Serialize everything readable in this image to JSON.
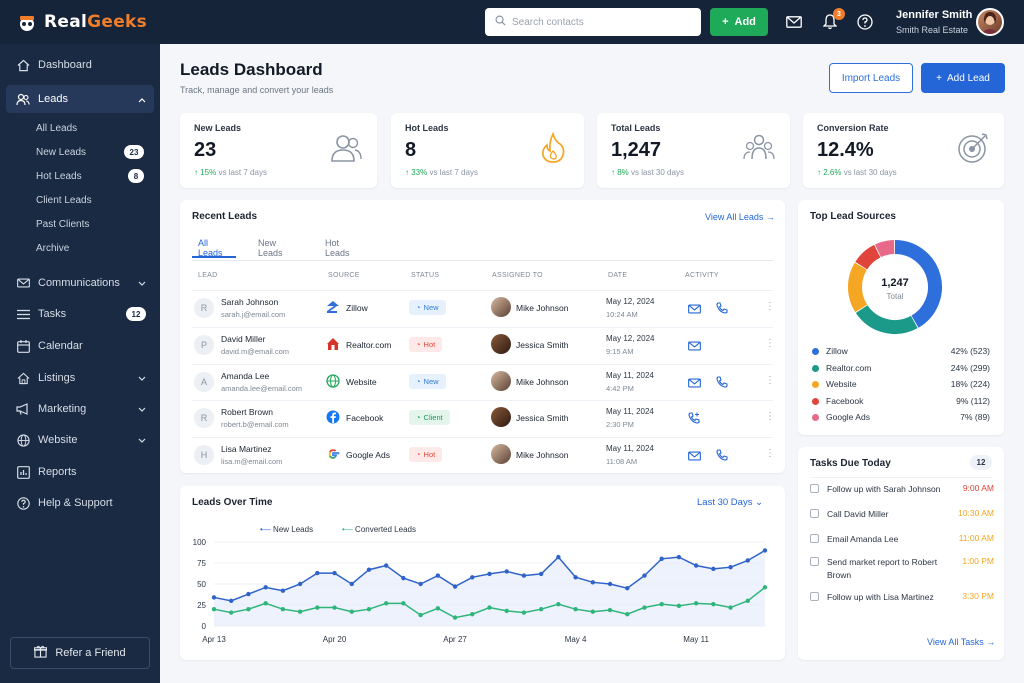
{
  "app": {
    "logo_left": "Real",
    "logo_right": "Geeks",
    "search_placeholder": "Search contacts",
    "add_label": "Add",
    "notification_count": "3",
    "user_name": "Jennifer Smith",
    "user_org": "Smith Real Estate"
  },
  "sidebar": {
    "items": [
      {
        "label": "Dashboard",
        "icon": "home-icon"
      },
      {
        "label": "Leads",
        "icon": "users-icon"
      },
      {
        "label": "Communications",
        "icon": "mail-icon"
      },
      {
        "label": "Tasks",
        "icon": "list-icon",
        "badge": "12"
      },
      {
        "label": "Calendar",
        "icon": "calendar-icon"
      },
      {
        "label": "Listings",
        "icon": "house-icon"
      },
      {
        "label": "Marketing",
        "icon": "megaphone-icon"
      },
      {
        "label": "Website",
        "icon": "globe-icon"
      },
      {
        "label": "Reports",
        "icon": "chart-icon"
      },
      {
        "label": "Help & Support",
        "icon": "help-icon"
      }
    ],
    "leads_sub": [
      {
        "label": "All Leads"
      },
      {
        "label": "New Leads",
        "badge": "23"
      },
      {
        "label": "Hot Leads",
        "badge": "8"
      },
      {
        "label": "Client Leads"
      },
      {
        "label": "Past Clients"
      },
      {
        "label": "Archive"
      }
    ],
    "refer_label": "Refer a Friend"
  },
  "header": {
    "title": "Leads Dashboard",
    "subtitle": "Track, manage and convert your leads",
    "import_label": "Import Leads",
    "add_lead_label": "Add Lead"
  },
  "stats": [
    {
      "label": "New Leads",
      "value": "23",
      "delta": "15%",
      "period": "vs last 7 days"
    },
    {
      "label": "Hot Leads",
      "value": "8",
      "delta": "33%",
      "period": "vs last 7 days"
    },
    {
      "label": "Total Leads",
      "value": "1,247",
      "delta": "8%",
      "period": "vs last 30 days"
    },
    {
      "label": "Conversion Rate",
      "value": "12.4%",
      "delta": "2.6%",
      "period": "vs last 30 days"
    }
  ],
  "recent": {
    "title": "Recent Leads",
    "view_all": "View All Leads →",
    "tabs": [
      "All Leads",
      "New Leads",
      "Hot Leads"
    ],
    "columns": [
      "LEAD",
      "SOURCE",
      "STATUS",
      "ASSIGNED TO",
      "DATE",
      "ACTIVITY"
    ],
    "rows": [
      {
        "initial": "R",
        "name": "Sarah Johnson",
        "email": "sarah.j@email.com",
        "source": "Zillow",
        "status": "New",
        "agent": "Mike Johnson",
        "date": "May 12, 2024",
        "time": "10:24 AM"
      },
      {
        "initial": "P",
        "name": "David Miller",
        "email": "david.m@email.com",
        "source": "Realtor.com",
        "status": "Hot",
        "agent": "Jessica Smith",
        "date": "May 12, 2024",
        "time": "9:15 AM"
      },
      {
        "initial": "A",
        "name": "Amanda Lee",
        "email": "amanda.lee@email.com",
        "source": "Website",
        "status": "New",
        "agent": "Mike Johnson",
        "date": "May 11, 2024",
        "time": "4:42 PM"
      },
      {
        "initial": "R",
        "name": "Robert Brown",
        "email": "robert.b@email.com",
        "source": "Facebook",
        "status": "Client",
        "agent": "Jessica Smith",
        "date": "May 11, 2024",
        "time": "2:30 PM"
      },
      {
        "initial": "H",
        "name": "Lisa Martinez",
        "email": "lisa.m@email.com",
        "source": "Google Ads",
        "status": "Hot",
        "agent": "Mike Johnson",
        "date": "May 11, 2024",
        "time": "11:08 AM"
      }
    ]
  },
  "sources": {
    "title": "Top Lead Sources",
    "total_value": "1,247",
    "total_label": "Total",
    "items": [
      {
        "name": "Zillow",
        "pct": 42,
        "value": "42% (523)",
        "color": "#2f6fdc"
      },
      {
        "name": "Realtor.com",
        "pct": 24,
        "value": "24% (299)",
        "color": "#1b9a8a"
      },
      {
        "name": "Website",
        "pct": 18,
        "value": "18% (224)",
        "color": "#f5a623"
      },
      {
        "name": "Facebook",
        "pct": 9,
        "value": "9% (112)",
        "color": "#e0443a"
      },
      {
        "name": "Google Ads",
        "pct": 7,
        "value": "7% (89)",
        "color": "#e86a8a"
      }
    ]
  },
  "tasks": {
    "title": "Tasks Due Today",
    "count": "12",
    "items": [
      {
        "text": "Follow up with Sarah Johnson",
        "time": "9:00 AM",
        "color": "#e0443a"
      },
      {
        "text": "Call David Miller",
        "time": "10:30 AM",
        "color": "#f5a623"
      },
      {
        "text": "Email Amanda Lee",
        "time": "11:00 AM",
        "color": "#f5a623"
      },
      {
        "text": "Send market report to Robert Brown",
        "time": "1:00 PM",
        "color": "#f5a623"
      },
      {
        "text": "Follow up with Lisa Martinez",
        "time": "3:30 PM",
        "color": "#f5a623"
      }
    ],
    "view_all": "View All Tasks →"
  },
  "chart_data": {
    "type": "line",
    "title": "Leads Over Time",
    "range_label": "Last 30 Days",
    "ylim": [
      0,
      100
    ],
    "yticks": [
      0,
      25,
      50,
      75,
      100
    ],
    "xtick_labels": [
      "Apr 13",
      "Apr 20",
      "Apr 27",
      "May 4",
      "May 11"
    ],
    "xtick_index": [
      0,
      7,
      14,
      21,
      28
    ],
    "series": [
      {
        "name": "New Leads",
        "color": "#2f63c9",
        "values": [
          34,
          30,
          38,
          46,
          42,
          50,
          63,
          63,
          50,
          67,
          72,
          57,
          50,
          60,
          47,
          58,
          62,
          65,
          60,
          62,
          82,
          58,
          52,
          50,
          45,
          60,
          80,
          82,
          72,
          68,
          70,
          78,
          90
        ]
      },
      {
        "name": "Converted Leads",
        "color": "#2fb57a",
        "values": [
          20,
          16,
          20,
          27,
          20,
          17,
          22,
          22,
          17,
          20,
          27,
          27,
          13,
          21,
          10,
          14,
          22,
          18,
          16,
          20,
          26,
          20,
          17,
          19,
          14,
          22,
          26,
          24,
          27,
          26,
          22,
          30,
          46
        ]
      }
    ]
  }
}
